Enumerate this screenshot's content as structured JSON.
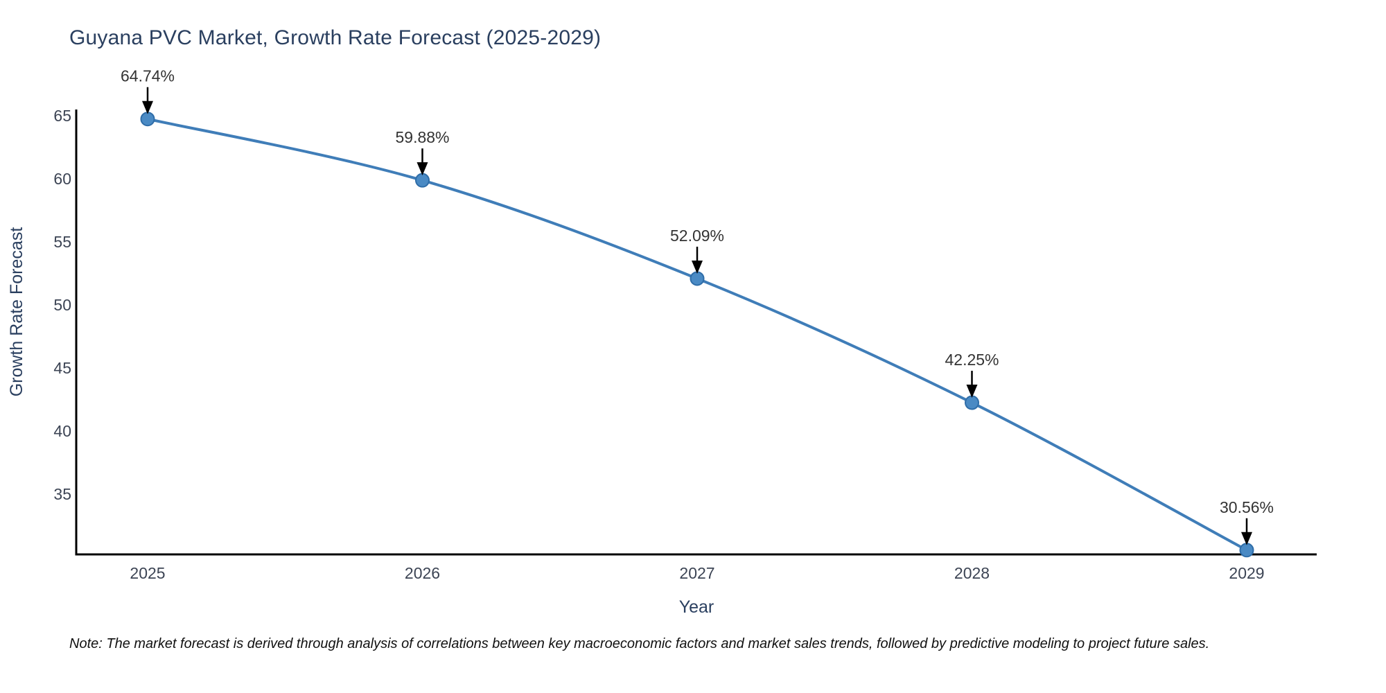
{
  "chart_data": {
    "type": "line",
    "title": "Guyana PVC Market, Growth Rate Forecast (2025-2029)",
    "xlabel": "Year",
    "ylabel": "Growth Rate Forecast",
    "x": [
      2025,
      2026,
      2027,
      2028,
      2029
    ],
    "series": [
      {
        "name": "Growth Rate Forecast",
        "values": [
          64.74,
          59.88,
          52.09,
          42.25,
          30.56
        ]
      }
    ],
    "point_labels": [
      "64.74%",
      "59.88%",
      "52.09%",
      "42.25%",
      "30.56%"
    ],
    "yticks": [
      35,
      40,
      45,
      50,
      55,
      60,
      65
    ],
    "ylim": [
      30.2,
      65.5
    ],
    "grid": false,
    "legend": "none",
    "colors": {
      "line": "#3f7db8",
      "marker_fill": "#4a8ac4",
      "marker_edge": "#2f6da8",
      "axis_spine": "#000000",
      "tick_text": "#3c4454",
      "title_text": "#2a3f5f",
      "annotation_text": "#333333",
      "annotation_arrow": "#000000"
    }
  },
  "note": "Note: The market forecast is derived through analysis of correlations between key macroeconomic factors and market sales trends, followed by predictive modeling to project future sales."
}
